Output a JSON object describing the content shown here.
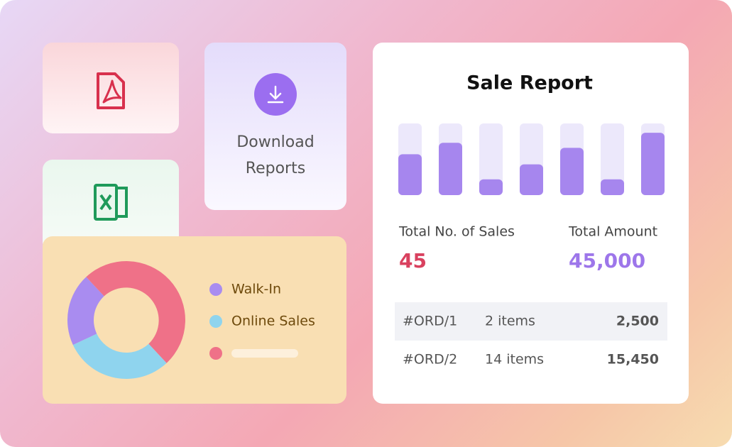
{
  "download_card": {
    "label": "Download Reports"
  },
  "donut_card": {
    "chart_data": {
      "type": "pie",
      "categories": [
        "Walk-In",
        "Online Sales",
        null
      ],
      "values": [
        20,
        30,
        50
      ],
      "colors": [
        "#a98cf0",
        "#8fd4ee",
        "#ef7188"
      ]
    }
  },
  "sale_report": {
    "title": "Sale Report",
    "chart_data": {
      "type": "bar",
      "values": [
        57,
        73,
        22,
        43,
        66,
        22,
        87
      ],
      "ylim": [
        0,
        100
      ],
      "color": "#a686ee",
      "track_color": "#ece8fb"
    },
    "stats": [
      {
        "label": "Total No. of Sales",
        "value": "45"
      },
      {
        "label": "Total Amount",
        "value": "45,000"
      }
    ],
    "table": {
      "rows": [
        [
          "#ORD/1",
          "2 items",
          "2,500"
        ],
        [
          "#ORD/2",
          "14 items",
          "15,450"
        ]
      ]
    }
  }
}
